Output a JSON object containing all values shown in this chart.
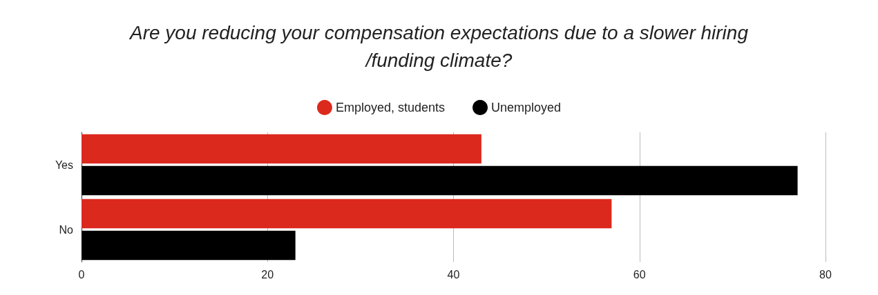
{
  "chart_data": {
    "type": "bar",
    "orientation": "horizontal",
    "title": "Are you reducing your compensation expectations due to a slower hiring/funding climate?",
    "categories": [
      "Yes",
      "No"
    ],
    "series": [
      {
        "name": "Employed, students",
        "color": "#dc291e",
        "values": [
          43,
          57
        ]
      },
      {
        "name": "Unemployed",
        "color": "#000000",
        "values": [
          77,
          23
        ]
      }
    ],
    "xlim": [
      0,
      80
    ],
    "xticks": [
      0,
      20,
      40,
      60,
      80
    ],
    "grid": "x",
    "legend": "top"
  }
}
